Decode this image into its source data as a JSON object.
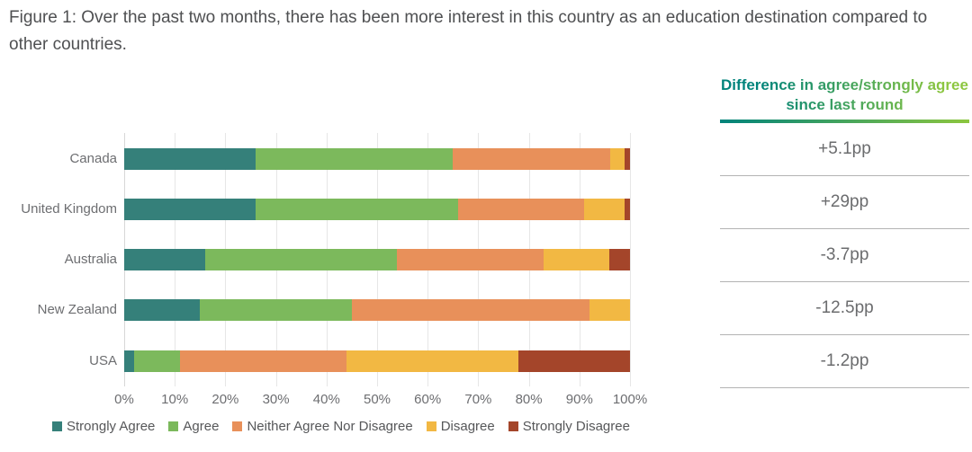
{
  "title": "Figure 1: Over the past two months, there has been more interest in this country as an education destination compared to other countries.",
  "colors": {
    "strongly_agree": "#35807A",
    "agree": "#7CB95C",
    "neither_agree_nor_disagree": "#E8905A",
    "disagree": "#F2B843",
    "strongly_disagree": "#A4452A",
    "header_gradient_start": "#00837B",
    "header_gradient_end": "#8CC63F",
    "label_gray": "#6D6E71"
  },
  "chart_data": {
    "type": "bar",
    "stacked": true,
    "orientation": "horizontal",
    "title": "",
    "xlabel": "",
    "ylabel": "",
    "xlim": [
      0,
      100
    ],
    "grid": true,
    "legend_position": "bottom",
    "x_ticks": [
      "0%",
      "10%",
      "20%",
      "30%",
      "40%",
      "50%",
      "60%",
      "70%",
      "80%",
      "90%",
      "100%"
    ],
    "categories": [
      "Canada",
      "United Kingdom",
      "Australia",
      "New Zealand",
      "USA"
    ],
    "series": [
      {
        "name": "Strongly Agree",
        "color": "#35807A",
        "values": [
          26,
          26,
          16,
          15,
          2
        ]
      },
      {
        "name": "Agree",
        "color": "#7CB95C",
        "values": [
          39,
          40,
          38,
          30,
          9
        ]
      },
      {
        "name": "Neither Agree Nor Disagree",
        "color": "#E8905A",
        "values": [
          31,
          25,
          29,
          47,
          33
        ]
      },
      {
        "name": "Disagree",
        "color": "#F2B843",
        "values": [
          3,
          8,
          13,
          8,
          34
        ]
      },
      {
        "name": "Strongly Disagree",
        "color": "#A4452A",
        "values": [
          1,
          1,
          4,
          0,
          22
        ]
      }
    ]
  },
  "diff_table": {
    "header": "Difference in agree/strongly agree since last round",
    "rows": [
      "+5.1pp",
      "+29pp",
      "-3.7pp",
      "-12.5pp",
      "-1.2pp"
    ]
  }
}
